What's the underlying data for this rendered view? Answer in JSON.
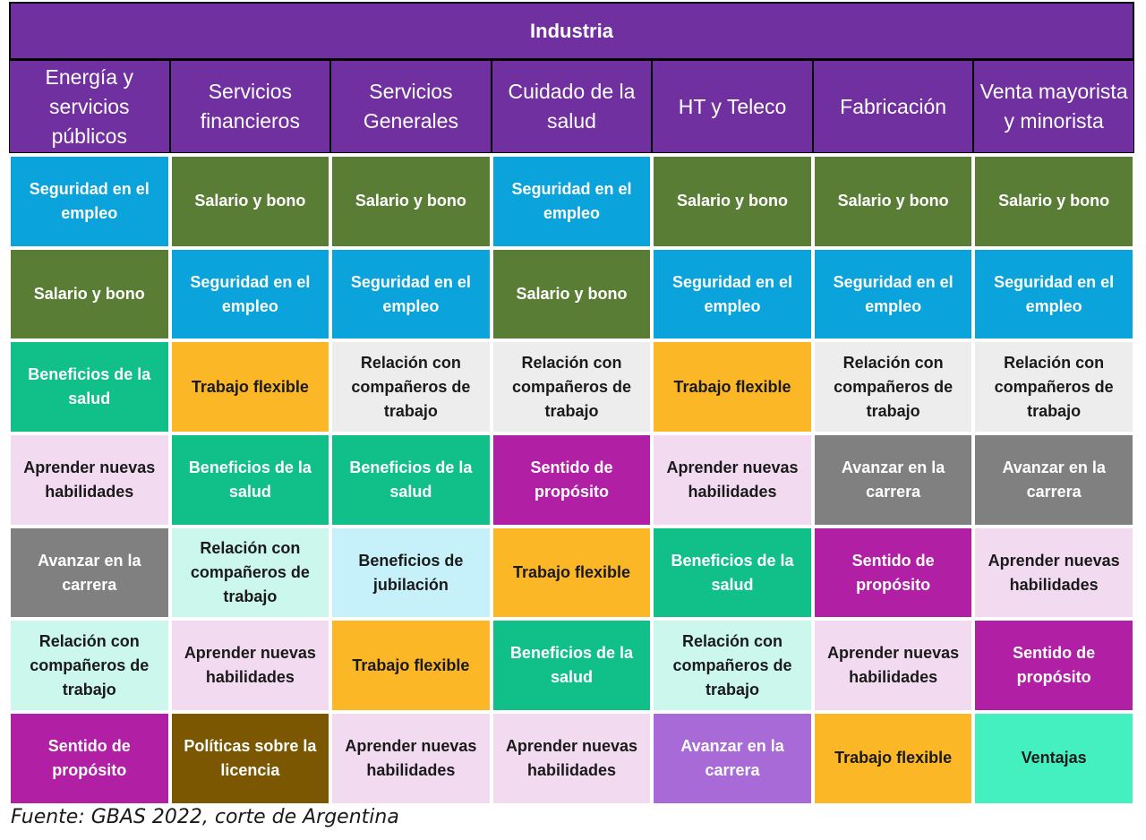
{
  "title": "Industria",
  "headers": [
    "Energía y servicios públicos",
    "Servicios financieros",
    "Servicios Generales",
    "Cuidado de la salud",
    "HT y Teleco",
    "Fabricación",
    "Venta mayorista y minorista"
  ],
  "palette": {
    "Seguridad en el empleo": {
      "bg": "#0aa3dc",
      "fg": "#ffffff"
    },
    "Salario y bono": {
      "bg": "#5a7d35",
      "fg": "#ffffff"
    },
    "Beneficios de la salud": {
      "bg": "#11bf88",
      "fg": "#ffffff"
    },
    "Trabajo flexible": {
      "bg": "#fbb726",
      "fg": "#1a1a1a"
    },
    "Relación con compañeros de trabajo": {
      "bg": "#ededed",
      "fg": "#1a1a1a"
    },
    "Relación con compañeros de trabajo (alt)": {
      "bg": "#ccf7ec",
      "fg": "#1a1a1a"
    },
    "Aprender nuevas habilidades": {
      "bg": "#f2dbf1",
      "fg": "#1a1a1a"
    },
    "Sentido de propósito": {
      "bg": "#b11fa4",
      "fg": "#ffffff"
    },
    "Avanzar en la carrera": {
      "bg": "#808080",
      "fg": "#ffffff"
    },
    "Avanzar en la carrera (alt)": {
      "bg": "#a86ad6",
      "fg": "#ffffff"
    },
    "Beneficios de jubilación": {
      "bg": "#c6f1fb",
      "fg": "#1a1a1a"
    },
    "Políticas sobre la licencia": {
      "bg": "#7b5701",
      "fg": "#ffffff"
    },
    "Ventajas": {
      "bg": "#44f0c0",
      "fg": "#1a1a1a"
    }
  },
  "rows": [
    [
      {
        "text": "Seguridad en el empleo",
        "style": "Seguridad en el empleo"
      },
      {
        "text": "Salario y bono",
        "style": "Salario y bono"
      },
      {
        "text": "Salario y bono",
        "style": "Salario y bono"
      },
      {
        "text": "Seguridad en el empleo",
        "style": "Seguridad en el empleo"
      },
      {
        "text": "Salario y bono",
        "style": "Salario y bono"
      },
      {
        "text": "Salario y bono",
        "style": "Salario y bono"
      },
      {
        "text": "Salario y bono",
        "style": "Salario y bono"
      }
    ],
    [
      {
        "text": "Salario y bono",
        "style": "Salario y bono"
      },
      {
        "text": "Seguridad en el empleo",
        "style": "Seguridad en el empleo"
      },
      {
        "text": "Seguridad en el empleo",
        "style": "Seguridad en el empleo"
      },
      {
        "text": "Salario y bono",
        "style": "Salario y bono"
      },
      {
        "text": "Seguridad en el empleo",
        "style": "Seguridad en el empleo"
      },
      {
        "text": "Seguridad en el empleo",
        "style": "Seguridad en el empleo"
      },
      {
        "text": "Seguridad en el empleo",
        "style": "Seguridad en el empleo"
      }
    ],
    [
      {
        "text": "Beneficios de la salud",
        "style": "Beneficios de la salud"
      },
      {
        "text": "Trabajo flexible",
        "style": "Trabajo flexible"
      },
      {
        "text": "Relación con compañeros de trabajo",
        "style": "Relación con compañeros de trabajo"
      },
      {
        "text": "Relación con compañeros de trabajo",
        "style": "Relación con compañeros de trabajo"
      },
      {
        "text": "Trabajo flexible",
        "style": "Trabajo flexible"
      },
      {
        "text": "Relación con compañeros de trabajo",
        "style": "Relación con compañeros de trabajo"
      },
      {
        "text": "Relación con compañeros de trabajo",
        "style": "Relación con compañeros de trabajo"
      }
    ],
    [
      {
        "text": "Aprender nuevas habilidades",
        "style": "Aprender nuevas habilidades"
      },
      {
        "text": "Beneficios de la salud",
        "style": "Beneficios de la salud"
      },
      {
        "text": "Beneficios de la salud",
        "style": "Beneficios de la salud"
      },
      {
        "text": "Sentido de propósito",
        "style": "Sentido de propósito"
      },
      {
        "text": "Aprender nuevas habilidades",
        "style": "Aprender nuevas habilidades"
      },
      {
        "text": "Avanzar en la carrera",
        "style": "Avanzar en la carrera"
      },
      {
        "text": "Avanzar en la carrera",
        "style": "Avanzar en la carrera"
      }
    ],
    [
      {
        "text": "Avanzar en la carrera",
        "style": "Avanzar en la carrera"
      },
      {
        "text": "Relación con compañeros de trabajo",
        "style": "Relación con compañeros de trabajo (alt)"
      },
      {
        "text": "Beneficios de jubilación",
        "style": "Beneficios de jubilación"
      },
      {
        "text": "Trabajo flexible",
        "style": "Trabajo flexible"
      },
      {
        "text": "Beneficios de la salud",
        "style": "Beneficios de la salud"
      },
      {
        "text": "Sentido de propósito",
        "style": "Sentido de propósito"
      },
      {
        "text": "Aprender nuevas habilidades",
        "style": "Aprender nuevas habilidades"
      }
    ],
    [
      {
        "text": "Relación con compañeros de trabajo",
        "style": "Relación con compañeros de trabajo (alt)"
      },
      {
        "text": "Aprender nuevas habilidades",
        "style": "Aprender nuevas habilidades"
      },
      {
        "text": "Trabajo flexible",
        "style": "Trabajo flexible"
      },
      {
        "text": "Beneficios de la salud",
        "style": "Beneficios de la salud"
      },
      {
        "text": "Relación con compañeros de trabajo",
        "style": "Relación con compañeros de trabajo (alt)"
      },
      {
        "text": "Aprender nuevas habilidades",
        "style": "Aprender nuevas habilidades"
      },
      {
        "text": "Sentido de propósito",
        "style": "Sentido de propósito"
      }
    ],
    [
      {
        "text": "Sentido de propósito",
        "style": "Sentido de propósito"
      },
      {
        "text": "Políticas sobre la licencia",
        "style": "Políticas sobre la licencia"
      },
      {
        "text": "Aprender nuevas habilidades",
        "style": "Aprender nuevas habilidades"
      },
      {
        "text": "Aprender nuevas habilidades",
        "style": "Aprender nuevas habilidades"
      },
      {
        "text": "Avanzar en la carrera",
        "style": "Avanzar en la carrera (alt)"
      },
      {
        "text": "Trabajo flexible",
        "style": "Trabajo flexible"
      },
      {
        "text": "Ventajas",
        "style": "Ventajas"
      }
    ]
  ],
  "source": "Fuente: GBAS 2022, corte de Argentina"
}
